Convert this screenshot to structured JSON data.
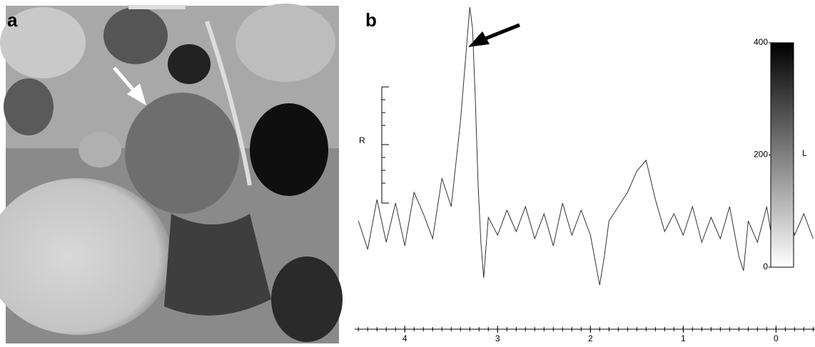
{
  "panel_labels": [
    "a",
    "b"
  ],
  "side_labels": [
    "R",
    "L"
  ],
  "chart_data": {
    "type": "line",
    "x": [
      4.5,
      4.4,
      4.3,
      4.2,
      4.1,
      4.0,
      3.9,
      3.8,
      3.7,
      3.6,
      3.5,
      3.45,
      3.4,
      3.35,
      3.3,
      3.27,
      3.24,
      3.21,
      3.18,
      3.15,
      3.1,
      3.0,
      2.9,
      2.8,
      2.7,
      2.6,
      2.5,
      2.4,
      2.3,
      2.2,
      2.1,
      2.0,
      1.9,
      1.85,
      1.8,
      1.7,
      1.6,
      1.5,
      1.4,
      1.3,
      1.2,
      1.1,
      1.0,
      0.9,
      0.8,
      0.7,
      0.6,
      0.5,
      0.4,
      0.35,
      0.3,
      0.2,
      0.1,
      0.0,
      -0.1,
      -0.2,
      -0.3,
      -0.4
    ],
    "series": [
      {
        "color": "#333333",
        "values": [
          10,
          -30,
          40,
          -20,
          35,
          -25,
          50,
          20,
          -15,
          70,
          30,
          90,
          150,
          230,
          310,
          280,
          180,
          60,
          -20,
          -70,
          15,
          -10,
          25,
          -5,
          30,
          -15,
          20,
          -25,
          35,
          -10,
          25,
          -10,
          -80,
          -40,
          10,
          30,
          50,
          80,
          95,
          40,
          -5,
          20,
          -10,
          30,
          -20,
          15,
          -15,
          30,
          -40,
          -60,
          10,
          -20,
          30,
          -50,
          40,
          -10,
          20,
          -15
        ]
      }
    ],
    "xlim": [
      4.54,
      -0.42
    ],
    "xticks": [
      4,
      3,
      2,
      1,
      0
    ],
    "colorbar": {
      "lim": [
        0,
        400
      ],
      "ticks": [
        0,
        200,
        400
      ]
    }
  }
}
